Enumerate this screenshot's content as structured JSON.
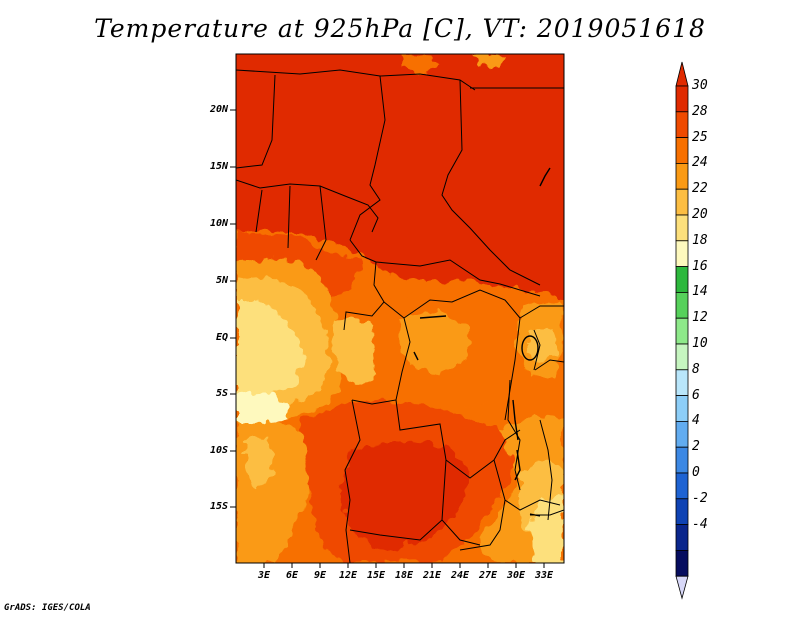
{
  "title": "Temperature at 925hPa [C], VT: 2019051618",
  "footer": "GrADS: IGES/COLA",
  "map": {
    "region": "Central and Southern-Central Africa",
    "lat_labels": [
      "20N",
      "15N",
      "10N",
      "5N",
      "EQ",
      "5S",
      "10S",
      "15S"
    ],
    "lon_labels": [
      "3E",
      "6E",
      "9E",
      "12E",
      "15E",
      "18E",
      "21E",
      "24E",
      "27E",
      "30E",
      "33E"
    ]
  },
  "colorbar": {
    "labels": [
      "30",
      "28",
      "25",
      "24",
      "22",
      "20",
      "18",
      "16",
      "14",
      "12",
      "10",
      "8",
      "6",
      "4",
      "2",
      "0",
      "-2",
      "-4"
    ],
    "colors": [
      "#e02a00",
      "#ef4a00",
      "#f77000",
      "#fa9a14",
      "#fcbe43",
      "#fde07c",
      "#fef9be",
      "#2db83d",
      "#56d15b",
      "#8ee98a",
      "#c6f5c0",
      "#b9e6fb",
      "#8dcef8",
      "#62acf0",
      "#3c88e4",
      "#1e63d3",
      "#0f43b4",
      "#0a268c",
      "#060d5f"
    ],
    "top_tip_color": "#e02a00",
    "bottom_tip_color": "#d8d8f8"
  }
}
